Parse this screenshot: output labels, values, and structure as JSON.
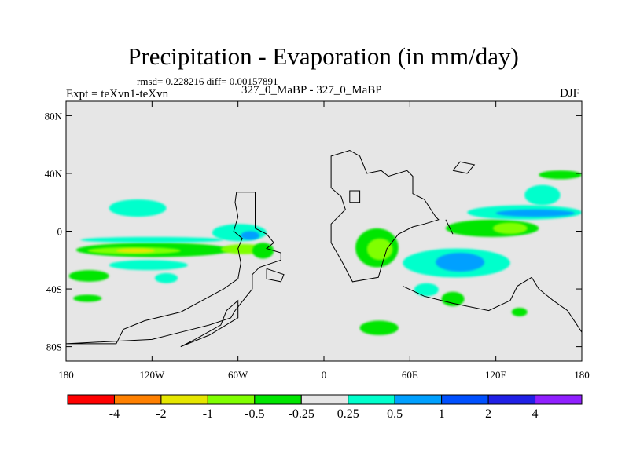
{
  "title": "Precipitation - Evaporation (in mm/day)",
  "stats": "rmsd= 0.228216 diff= 0.00157891",
  "expt_label": "Expt = teXvn1-teXvn",
  "center_label": "327_0_MaBP - 327_0_MaBP",
  "season": "DJF",
  "colors": {
    "background": "#e6e6e6",
    "coastline": "#000000"
  },
  "chart_data": {
    "type": "heatmap",
    "projection": "cylindrical-equidistant",
    "xlim": [
      -180,
      180
    ],
    "ylim": [
      -90,
      90
    ],
    "y_ticks": [
      {
        "value": 80,
        "label": "80N"
      },
      {
        "value": 40,
        "label": "40N"
      },
      {
        "value": 0,
        "label": "0"
      },
      {
        "value": -40,
        "label": "40S"
      },
      {
        "value": -80,
        "label": "80S"
      }
    ],
    "x_ticks": [
      {
        "value": -180,
        "label": "180"
      },
      {
        "value": -120,
        "label": "120W"
      },
      {
        "value": -60,
        "label": "60W"
      },
      {
        "value": 0,
        "label": "0"
      },
      {
        "value": 60,
        "label": "60E"
      },
      {
        "value": 120,
        "label": "120E"
      },
      {
        "value": 180,
        "label": "180"
      }
    ],
    "colorbar": {
      "levels": [
        "-4",
        "-2",
        "-1",
        "-0.5",
        "-0.25",
        "0.25",
        "0.5",
        "1",
        "2",
        "4"
      ],
      "colors": [
        "#ff0000",
        "#ff8000",
        "#e6e600",
        "#80ff00",
        "#00e600",
        "#e6e6e6",
        "#00ffcc",
        "#00a0ff",
        "#0050ff",
        "#2020e6",
        "#9020ff"
      ]
    },
    "regions": [
      {
        "sign": "neg",
        "color": "#00e600",
        "lon": [
          -173,
          -65
        ],
        "lat": [
          -18,
          -8
        ]
      },
      {
        "sign": "neg",
        "color": "#80ff00",
        "lon": [
          -165,
          -100
        ],
        "lat": [
          -16,
          -11
        ]
      },
      {
        "sign": "neg",
        "color": "#e6e600",
        "lon": [
          -145,
          -118
        ],
        "lat": [
          -15,
          -12
        ]
      },
      {
        "sign": "neg",
        "color": "#00e600",
        "lon": [
          -178,
          -150
        ],
        "lat": [
          -35,
          -27
        ]
      },
      {
        "sign": "neg",
        "color": "#80ff00",
        "lon": [
          -72,
          -40
        ],
        "lat": [
          -16,
          -9
        ]
      },
      {
        "sign": "neg",
        "color": "#00e600",
        "lon": [
          -50,
          -35
        ],
        "lat": [
          -19,
          -8
        ]
      },
      {
        "sign": "neg",
        "color": "#00e600",
        "lon": [
          22,
          52
        ],
        "lat": [
          -25,
          2
        ]
      },
      {
        "sign": "neg",
        "color": "#80ff00",
        "lon": [
          30,
          48
        ],
        "lat": [
          -20,
          -5
        ]
      },
      {
        "sign": "neg",
        "color": "#00e600",
        "lon": [
          85,
          150
        ],
        "lat": [
          -4,
          8
        ]
      },
      {
        "sign": "neg",
        "color": "#80ff00",
        "lon": [
          118,
          142
        ],
        "lat": [
          -2,
          6
        ]
      },
      {
        "sign": "neg",
        "color": "#00e600",
        "lon": [
          82,
          98
        ],
        "lat": [
          -52,
          -42
        ]
      },
      {
        "sign": "neg",
        "color": "#00e600",
        "lon": [
          25,
          52
        ],
        "lat": [
          -72,
          -62
        ]
      },
      {
        "sign": "neg",
        "color": "#00e600",
        "lon": [
          131,
          142
        ],
        "lat": [
          -59,
          -53
        ]
      },
      {
        "sign": "neg",
        "color": "#00e600",
        "lon": [
          150,
          180
        ],
        "lat": [
          36,
          42
        ]
      },
      {
        "sign": "neg",
        "color": "#00e600",
        "lon": [
          -175,
          -155
        ],
        "lat": [
          -49,
          -44
        ]
      },
      {
        "sign": "pos",
        "color": "#00ffcc",
        "lon": [
          -170,
          -70
        ],
        "lat": [
          -8,
          -4
        ]
      },
      {
        "sign": "pos",
        "color": "#00ffcc",
        "lon": [
          -150,
          -95
        ],
        "lat": [
          -27,
          -20
        ]
      },
      {
        "sign": "pos",
        "color": "#00ffcc",
        "lon": [
          -150,
          -110
        ],
        "lat": [
          10,
          22
        ]
      },
      {
        "sign": "pos",
        "color": "#00ffcc",
        "lon": [
          -78,
          -40
        ],
        "lat": [
          -7,
          5
        ]
      },
      {
        "sign": "pos",
        "color": "#00a0ff",
        "lon": [
          -58,
          -45
        ],
        "lat": [
          -6,
          0
        ]
      },
      {
        "sign": "pos",
        "color": "#00ffcc",
        "lon": [
          -118,
          -102
        ],
        "lat": [
          -36,
          -29
        ]
      },
      {
        "sign": "pos",
        "color": "#00ffcc",
        "lon": [
          55,
          130
        ],
        "lat": [
          -32,
          -12
        ]
      },
      {
        "sign": "pos",
        "color": "#00a0ff",
        "lon": [
          78,
          112
        ],
        "lat": [
          -28,
          -15
        ]
      },
      {
        "sign": "pos",
        "color": "#00ffcc",
        "lon": [
          100,
          180
        ],
        "lat": [
          8,
          18
        ]
      },
      {
        "sign": "pos",
        "color": "#00a0ff",
        "lon": [
          120,
          175
        ],
        "lat": [
          10,
          15
        ]
      },
      {
        "sign": "pos",
        "color": "#00ffcc",
        "lon": [
          140,
          165
        ],
        "lat": [
          18,
          32
        ]
      },
      {
        "sign": "pos",
        "color": "#00ffcc",
        "lon": [
          63,
          80
        ],
        "lat": [
          -45,
          -36
        ]
      }
    ],
    "coastlines": [
      [
        [
          -180,
          -78
        ],
        [
          -145,
          -78
        ],
        [
          -140,
          -68
        ],
        [
          -125,
          -62
        ],
        [
          -100,
          -56
        ],
        [
          -85,
          -48
        ],
        [
          -70,
          -40
        ],
        [
          -60,
          -33
        ],
        [
          -58,
          -22
        ],
        [
          -60,
          -12
        ],
        [
          -57,
          -5
        ],
        [
          -63,
          0
        ],
        [
          -60,
          10
        ],
        [
          -62,
          20
        ],
        [
          -61,
          27
        ],
        [
          -48,
          27
        ],
        [
          -48,
          2
        ],
        [
          -40,
          -2
        ],
        [
          -35,
          -8
        ],
        [
          -40,
          -12
        ],
        [
          -30,
          -15
        ],
        [
          -30,
          -20
        ],
        [
          -45,
          -25
        ],
        [
          -50,
          -30
        ],
        [
          -50,
          -40
        ],
        [
          -58,
          -50
        ],
        [
          -62,
          -55
        ],
        [
          -65,
          -60
        ],
        [
          -80,
          -65
        ],
        [
          -100,
          -70
        ],
        [
          -120,
          -75
        ],
        [
          -180,
          -78
        ]
      ],
      [
        [
          -100,
          -80
        ],
        [
          -80,
          -72
        ],
        [
          -60,
          -60
        ],
        [
          -60,
          -48
        ],
        [
          -68,
          -55
        ],
        [
          -72,
          -65
        ],
        [
          -90,
          -75
        ],
        [
          -100,
          -80
        ]
      ],
      [
        [
          -40,
          -26
        ],
        [
          -28,
          -30
        ],
        [
          -30,
          -35
        ],
        [
          -40,
          -33
        ],
        [
          -40,
          -26
        ]
      ],
      [
        [
          5,
          30
        ],
        [
          5,
          52
        ],
        [
          18,
          56
        ],
        [
          25,
          52
        ],
        [
          30,
          40
        ],
        [
          40,
          42
        ],
        [
          45,
          38
        ],
        [
          58,
          42
        ],
        [
          62,
          38
        ],
        [
          62,
          26
        ],
        [
          70,
          22
        ],
        [
          78,
          10
        ],
        [
          80,
          8
        ],
        [
          70,
          5
        ],
        [
          62,
          3
        ],
        [
          52,
          -2
        ],
        [
          44,
          -12
        ],
        [
          40,
          -25
        ],
        [
          38,
          -32
        ],
        [
          20,
          -35
        ],
        [
          12,
          -20
        ],
        [
          5,
          -8
        ],
        [
          5,
          5
        ],
        [
          15,
          15
        ],
        [
          12,
          24
        ],
        [
          5,
          30
        ]
      ],
      [
        [
          55,
          -38
        ],
        [
          70,
          -45
        ],
        [
          90,
          -50
        ],
        [
          115,
          -55
        ],
        [
          130,
          -48
        ],
        [
          135,
          -38
        ],
        [
          145,
          -32
        ],
        [
          150,
          -40
        ],
        [
          160,
          -48
        ],
        [
          170,
          -55
        ],
        [
          180,
          -70
        ]
      ],
      [
        [
          85,
          8
        ],
        [
          90,
          -2
        ],
        [
          88,
          2
        ],
        [
          85,
          8
        ]
      ],
      [
        [
          90,
          42
        ],
        [
          95,
          48
        ],
        [
          105,
          46
        ],
        [
          100,
          40
        ],
        [
          90,
          42
        ]
      ],
      [
        [
          18,
          20
        ],
        [
          25,
          20
        ],
        [
          25,
          28
        ],
        [
          18,
          28
        ],
        [
          18,
          20
        ]
      ]
    ]
  }
}
